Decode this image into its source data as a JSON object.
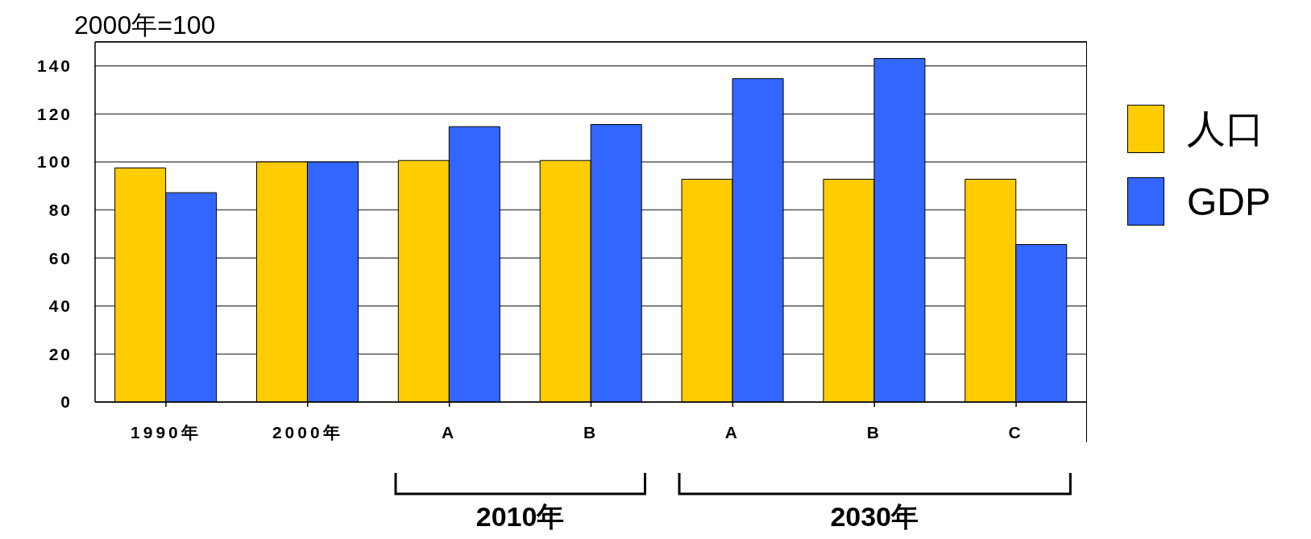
{
  "chart_data": {
    "type": "bar",
    "ylabel": "2000年=100",
    "categories": [
      "1990年",
      "2000年",
      "A",
      "B",
      "A",
      "B",
      "C"
    ],
    "series": [
      {
        "name": "人口",
        "color": "#ffcc00",
        "values": [
          97.5,
          100,
          100.6,
          100.6,
          92.8,
          92.8,
          92.8
        ]
      },
      {
        "name": "GDP",
        "color": "#3366ff",
        "values": [
          87.2,
          100,
          114.7,
          115.6,
          134.7,
          143.1,
          65.6
        ]
      }
    ],
    "ylim": [
      0,
      150
    ],
    "yticks": [
      0,
      20,
      40,
      60,
      80,
      100,
      120,
      140
    ],
    "grid": "y",
    "legend": "right",
    "annotations": [
      "2010年",
      "2030年"
    ]
  }
}
